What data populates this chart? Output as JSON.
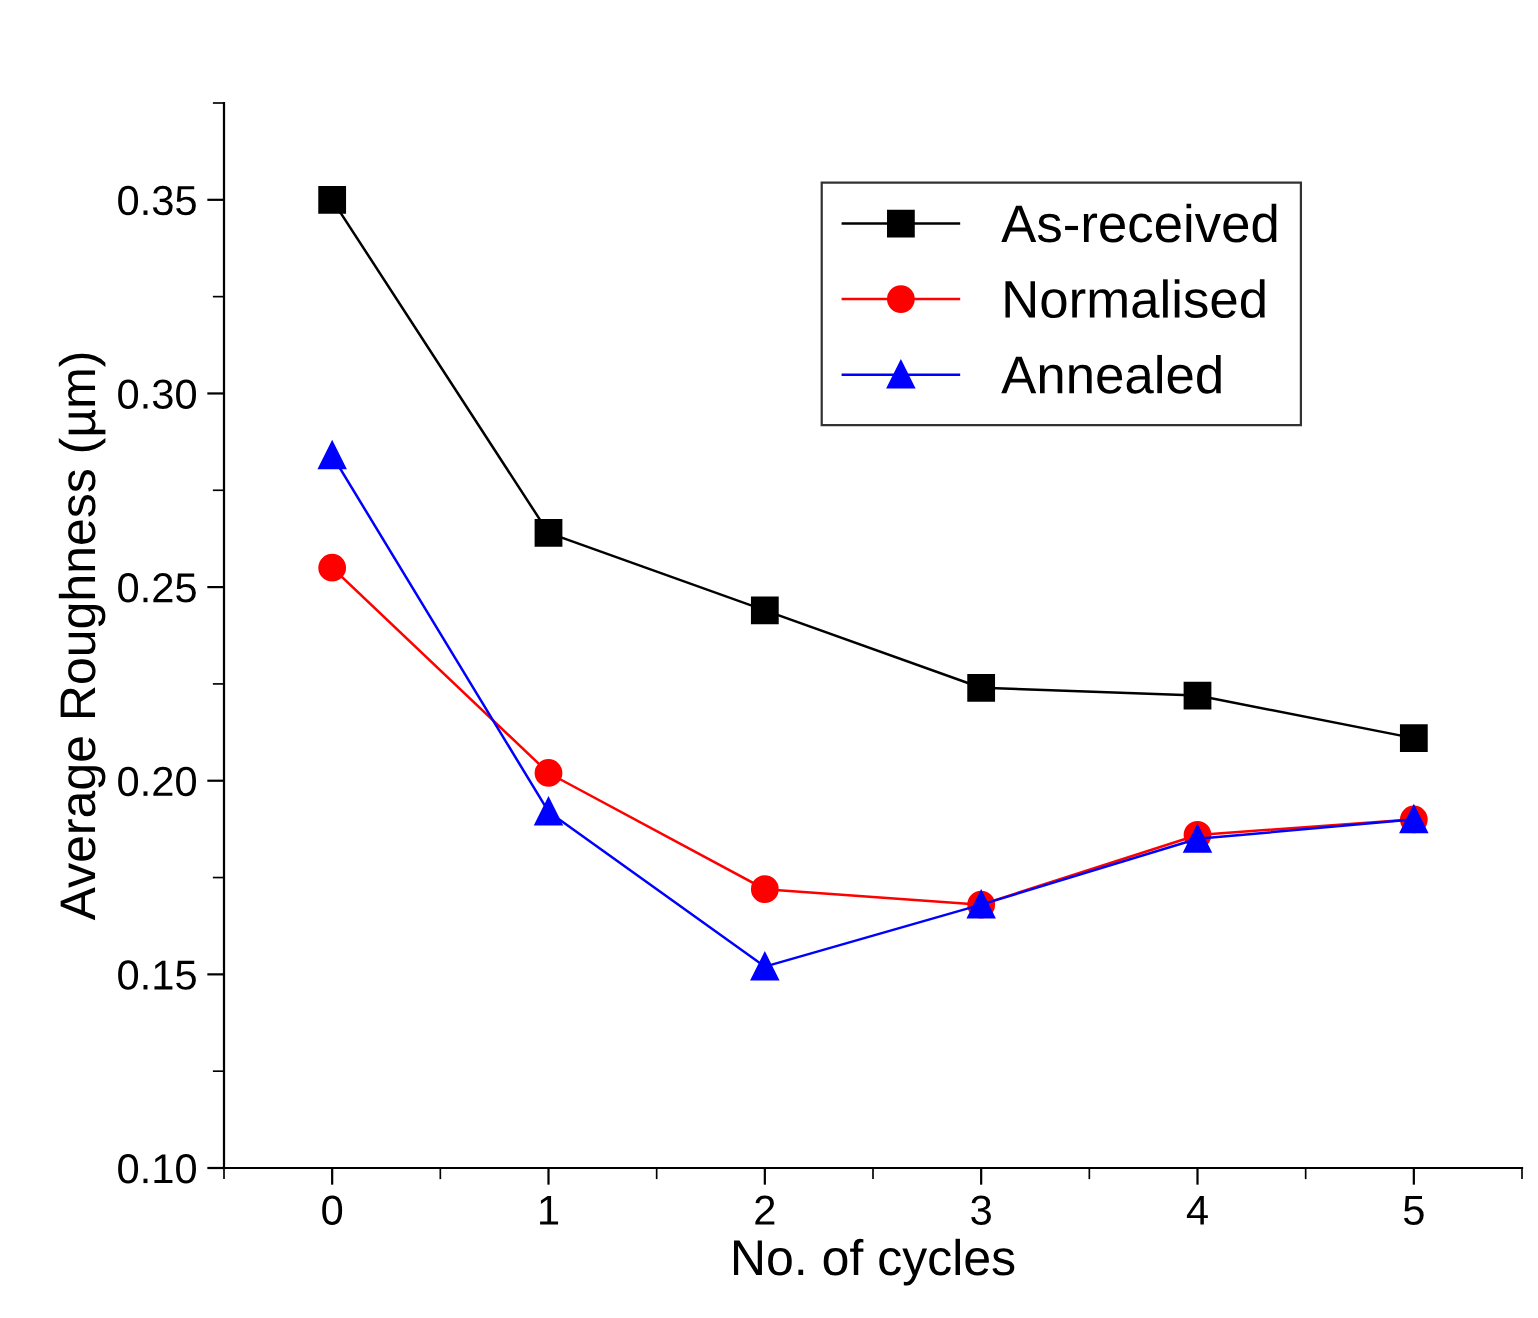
{
  "chart_data": {
    "type": "line",
    "xlabel": "No. of cycles",
    "ylabel": "Average Roughness (µm)",
    "x": [
      0,
      1,
      2,
      3,
      4,
      5
    ],
    "series": [
      {
        "name": "As-received",
        "color": "#000000",
        "marker": "square",
        "values": [
          0.35,
          0.264,
          0.244,
          0.224,
          0.222,
          0.211
        ]
      },
      {
        "name": "Normalised",
        "color": "#ff0000",
        "marker": "circle",
        "values": [
          0.255,
          0.202,
          0.172,
          0.168,
          0.186,
          0.19
        ]
      },
      {
        "name": "Annealed",
        "color": "#0000ff",
        "marker": "triangle",
        "values": [
          0.284,
          0.192,
          0.152,
          0.168,
          0.185,
          0.19
        ]
      }
    ],
    "xlim": [
      -0.5,
      5.5
    ],
    "ylim": [
      0.1,
      0.375
    ],
    "xticks": [
      0,
      1,
      2,
      3,
      4,
      5
    ],
    "yticks": [
      {
        "value": 0.1,
        "label": "0.10"
      },
      {
        "value": 0.15,
        "label": "0.15"
      },
      {
        "value": 0.2,
        "label": "0.20"
      },
      {
        "value": 0.25,
        "label": "0.25"
      },
      {
        "value": 0.3,
        "label": "0.30"
      },
      {
        "value": 0.35,
        "label": "0.35"
      }
    ],
    "grid": false,
    "legend": "top right",
    "line_style": "solid"
  }
}
